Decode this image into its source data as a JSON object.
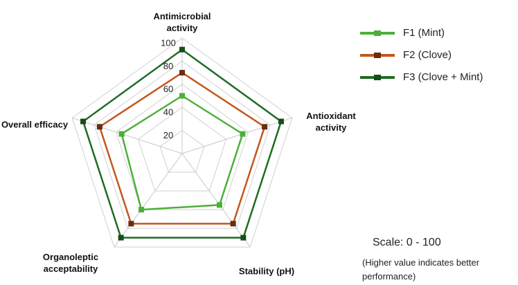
{
  "chart_data": {
    "type": "radar",
    "categories": [
      "Antimicrobial activity",
      "Antioxidant activity",
      "Stability (pH)",
      "Organoleptic acceptability",
      "Overall efficacy"
    ],
    "series": [
      {
        "name": "F1 (Mint)",
        "color": "#4caf3a",
        "marker_color": "#4caf3a",
        "values": [
          50,
          55,
          55,
          60,
          55
        ]
      },
      {
        "name": "F2 (Clove)",
        "color": "#c4561e",
        "marker_color": "#6b2c0e",
        "values": [
          70,
          75,
          75,
          75,
          75
        ]
      },
      {
        "name": "F3 (Clove + Mint)",
        "color": "#1e6b22",
        "marker_color": "#174d19",
        "values": [
          90,
          90,
          90,
          90,
          90
        ]
      }
    ],
    "ylim": [
      0,
      100
    ],
    "yticks": [
      20,
      40,
      60,
      80,
      100
    ],
    "grid": true,
    "legend": "upper right",
    "annotations": [
      "Scale: 0 - 100",
      "(Higher value indicates better performance)"
    ]
  }
}
